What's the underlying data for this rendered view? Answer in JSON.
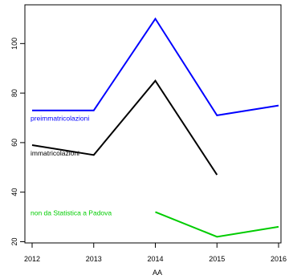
{
  "chart_data": {
    "type": "line",
    "title": "",
    "xlabel": "AA",
    "ylabel": "",
    "x": [
      2012,
      2013,
      2014,
      2015,
      2016
    ],
    "xlim": [
      2012,
      2016
    ],
    "ylim": [
      19.5,
      115
    ],
    "x_ticks": [
      "2012",
      "2013",
      "2014",
      "2015",
      "2016"
    ],
    "y_ticks": [
      20,
      40,
      60,
      80,
      100
    ],
    "y_tick_labels": [
      "20",
      "40",
      "60",
      "80",
      "100"
    ],
    "grid": false,
    "legend": "inline labels",
    "series": [
      {
        "name": "preimmatricolazioni",
        "color": "#0000ff",
        "values": [
          73,
          73,
          110,
          71,
          75
        ]
      },
      {
        "name": "immatricolazioni",
        "color": "#000000",
        "values": [
          59,
          55,
          85,
          47,
          null
        ]
      },
      {
        "name": "non da Statistica a Padova",
        "color": "#00cc00",
        "values": [
          null,
          null,
          32,
          22,
          26
        ]
      }
    ]
  }
}
